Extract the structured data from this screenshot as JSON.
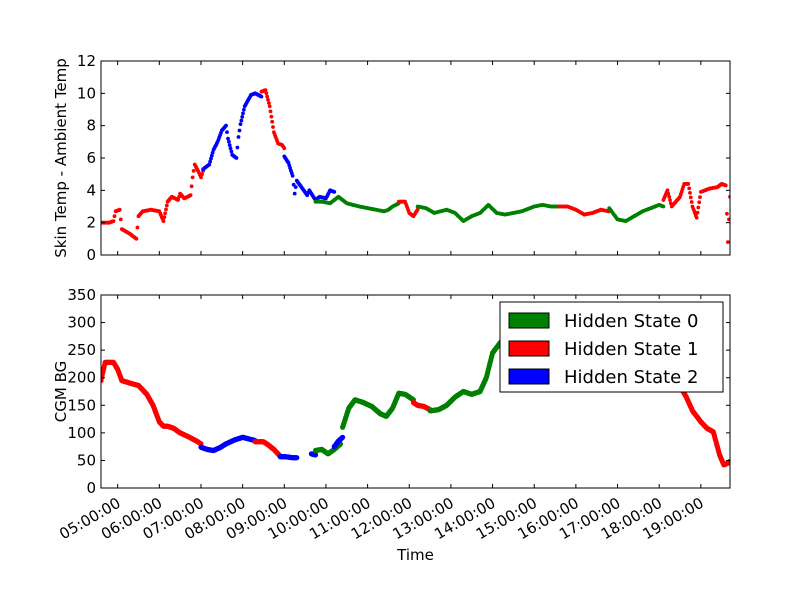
{
  "chart_data": [
    {
      "type": "scatter",
      "ylabel": "Skin Temp - Ambient Temp",
      "ylim": [
        0,
        12
      ],
      "yticks": [
        "0",
        "2",
        "4",
        "6",
        "8",
        "10",
        "12"
      ],
      "show_xtick_labels": false,
      "xlim": [
        4.6,
        19.7
      ],
      "series": [
        {
          "state": 1,
          "color": "#ff0000",
          "x": [
            4.6,
            4.8,
            4.9,
            4.95,
            5.05,
            5.1,
            5.3,
            5.45,
            5.5,
            5.6,
            5.8,
            6.0,
            6.1,
            6.2,
            6.3,
            6.45,
            6.5,
            6.6,
            6.75,
            6.8,
            6.85,
            6.95,
            7.0,
            7.05
          ],
          "y": [
            2.0,
            2.0,
            2.1,
            2.7,
            2.8,
            1.6,
            1.3,
            1.0,
            2.4,
            2.7,
            2.8,
            2.7,
            2.1,
            3.3,
            3.6,
            3.4,
            3.8,
            3.5,
            3.7,
            4.8,
            5.6,
            5.1,
            4.8,
            5.2
          ]
        },
        {
          "state": 2,
          "color": "#0000ff",
          "x": [
            7.05,
            7.2,
            7.3,
            7.4,
            7.5,
            7.6,
            7.65,
            7.75,
            7.85,
            7.9,
            7.95,
            8.05,
            8.2,
            8.3,
            8.45
          ],
          "y": [
            5.3,
            5.6,
            6.5,
            7.0,
            7.7,
            8.0,
            7.2,
            6.2,
            6.0,
            7.3,
            8.1,
            9.2,
            9.9,
            10.0,
            9.8
          ]
        },
        {
          "state": 1,
          "color": "#ff0000",
          "x": [
            8.45,
            8.55,
            8.65,
            8.75,
            8.85,
            8.95,
            9.0
          ],
          "y": [
            10.1,
            10.2,
            9.2,
            7.6,
            6.9,
            6.8,
            6.6
          ]
        },
        {
          "state": 2,
          "color": "#0000ff",
          "x": [
            9.0,
            9.1,
            9.2,
            9.25,
            9.3,
            9.55,
            9.6,
            9.75,
            9.85,
            10.0,
            10.1,
            10.2
          ],
          "y": [
            6.1,
            5.7,
            4.9,
            3.8,
            4.6,
            3.7,
            4.0,
            3.4,
            3.6,
            3.5,
            4.0,
            3.9
          ]
        },
        {
          "state": 0,
          "color": "#008000",
          "x": [
            9.75,
            9.9,
            10.1,
            10.3,
            10.5,
            10.8,
            11.0,
            11.2,
            11.4,
            11.5,
            11.6,
            11.75
          ],
          "y": [
            3.3,
            3.3,
            3.2,
            3.6,
            3.2,
            3.0,
            2.9,
            2.8,
            2.7,
            2.8,
            3.0,
            3.2
          ]
        },
        {
          "state": 1,
          "color": "#ff0000",
          "x": [
            11.75,
            11.9,
            12.0,
            12.1,
            12.2
          ],
          "y": [
            3.3,
            3.3,
            2.6,
            2.4,
            2.8
          ]
        },
        {
          "state": 0,
          "color": "#008000",
          "x": [
            12.2,
            12.4,
            12.6,
            12.9,
            13.1,
            13.3,
            13.5,
            13.7,
            13.9,
            14.1,
            14.3,
            14.5,
            14.7,
            14.9,
            15.0,
            15.2,
            15.4,
            15.6
          ],
          "y": [
            3.0,
            2.9,
            2.6,
            2.8,
            2.6,
            2.1,
            2.4,
            2.6,
            3.1,
            2.6,
            2.5,
            2.6,
            2.7,
            2.9,
            3.0,
            3.1,
            3.0,
            3.0
          ]
        },
        {
          "state": 1,
          "color": "#ff0000",
          "x": [
            15.6,
            15.8,
            16.0,
            16.2,
            16.4,
            16.6,
            16.8
          ],
          "y": [
            3.0,
            3.0,
            2.8,
            2.5,
            2.6,
            2.8,
            2.7
          ]
        },
        {
          "state": 0,
          "color": "#008000",
          "x": [
            16.8,
            17.0,
            17.2,
            17.4,
            17.6,
            17.8,
            18.0,
            18.1
          ],
          "y": [
            2.9,
            2.2,
            2.1,
            2.4,
            2.7,
            2.9,
            3.1,
            3.0
          ]
        },
        {
          "state": 1,
          "color": "#ff0000",
          "x": [
            18.1,
            18.2,
            18.3,
            18.5,
            18.6,
            18.7,
            18.8,
            18.9,
            19.0,
            19.2,
            19.4,
            19.5,
            19.6,
            19.65,
            19.7
          ],
          "y": [
            3.4,
            4.0,
            3.0,
            3.6,
            4.4,
            4.4,
            3.0,
            2.3,
            3.9,
            4.1,
            4.2,
            4.4,
            4.3,
            0.8,
            3.6
          ]
        }
      ]
    },
    {
      "type": "scatter",
      "xlabel": "Time",
      "ylabel": "CGM BG",
      "ylim": [
        0,
        350
      ],
      "yticks": [
        "0",
        "50",
        "100",
        "150",
        "200",
        "250",
        "300",
        "350"
      ],
      "xlim": [
        4.6,
        19.7
      ],
      "xticks": [
        5,
        6,
        7,
        8,
        9,
        10,
        11,
        12,
        13,
        14,
        15,
        16,
        17,
        18,
        19
      ],
      "xtick_labels": [
        "05:00:00",
        "06:00:00",
        "07:00:00",
        "08:00:00",
        "09:00:00",
        "10:00:00",
        "11:00:00",
        "12:00:00",
        "13:00:00",
        "14:00:00",
        "15:00:00",
        "16:00:00",
        "17:00:00",
        "18:00:00",
        "19:00:00"
      ],
      "legend": {
        "position": "top-right",
        "entries": [
          {
            "label": "Hidden State 0",
            "color": "#008000"
          },
          {
            "label": "Hidden State 1",
            "color": "#ff0000"
          },
          {
            "label": "Hidden State 2",
            "color": "#0000ff"
          }
        ]
      },
      "series": [
        {
          "state": 1,
          "color": "#ff0000",
          "x": [
            4.6,
            4.7,
            4.9,
            5.0,
            5.1,
            5.3,
            5.5,
            5.7,
            5.85,
            6.0,
            6.1,
            6.2,
            6.35,
            6.5,
            6.7,
            6.9,
            7.0
          ],
          "y": [
            195,
            228,
            228,
            215,
            195,
            190,
            186,
            170,
            150,
            120,
            112,
            112,
            108,
            100,
            93,
            85,
            80
          ]
        },
        {
          "state": 2,
          "color": "#0000ff",
          "x": [
            7.0,
            7.15,
            7.3,
            7.45,
            7.6,
            7.8,
            8.0,
            8.2,
            8.3
          ],
          "y": [
            74,
            70,
            68,
            73,
            80,
            87,
            92,
            88,
            86
          ]
        },
        {
          "state": 1,
          "color": "#ff0000",
          "x": [
            8.3,
            8.5,
            8.6,
            8.75,
            8.9
          ],
          "y": [
            84,
            84,
            79,
            70,
            58
          ]
        },
        {
          "state": 2,
          "color": "#0000ff",
          "x": [
            8.9,
            9.0,
            9.2,
            9.3
          ],
          "y": [
            57,
            57,
            55,
            55
          ]
        },
        {
          "state": 2,
          "color": "#0000ff",
          "x": [
            9.65,
            9.75
          ],
          "y": [
            62,
            60
          ]
        },
        {
          "state": 0,
          "color": "#008000",
          "x": [
            9.75,
            9.9,
            10.05,
            10.2,
            10.35
          ],
          "y": [
            68,
            70,
            62,
            70,
            80
          ]
        },
        {
          "state": 2,
          "color": "#0000ff",
          "x": [
            10.2,
            10.3,
            10.4
          ],
          "y": [
            75,
            85,
            92
          ]
        },
        {
          "state": 0,
          "color": "#008000",
          "x": [
            10.4,
            10.55,
            10.7,
            10.9,
            11.1,
            11.3,
            11.45,
            11.6,
            11.75,
            11.9,
            12.0,
            12.1
          ],
          "y": [
            110,
            145,
            160,
            155,
            148,
            135,
            130,
            145,
            172,
            170,
            165,
            160
          ]
        },
        {
          "state": 1,
          "color": "#ff0000",
          "x": [
            12.1,
            12.2,
            12.35,
            12.5
          ],
          "y": [
            155,
            150,
            148,
            142
          ]
        },
        {
          "state": 0,
          "color": "#008000",
          "x": [
            12.5,
            12.7,
            12.9,
            13.1,
            13.3,
            13.5,
            13.7,
            13.85,
            14.0,
            14.2,
            14.4,
            14.6,
            14.8,
            15.0,
            15.2,
            15.4,
            15.6,
            15.8,
            16.0,
            16.3,
            16.6,
            16.9,
            17.2,
            17.5,
            17.8,
            18.0,
            18.1
          ],
          "y": [
            140,
            142,
            150,
            165,
            175,
            170,
            175,
            200,
            245,
            265,
            285,
            288,
            287,
            285,
            283,
            282,
            280,
            278,
            283,
            285,
            290,
            300,
            315,
            325,
            328,
            330,
            330
          ]
        },
        {
          "state": 1,
          "color": "#ff0000",
          "x": [
            18.1,
            18.2,
            18.3,
            18.4,
            18.5,
            18.65,
            18.8,
            19.0,
            19.15,
            19.3,
            19.45,
            19.55,
            19.65,
            19.7
          ],
          "y": [
            325,
            300,
            250,
            205,
            185,
            165,
            140,
            120,
            108,
            102,
            60,
            42,
            45,
            48
          ]
        }
      ]
    }
  ]
}
